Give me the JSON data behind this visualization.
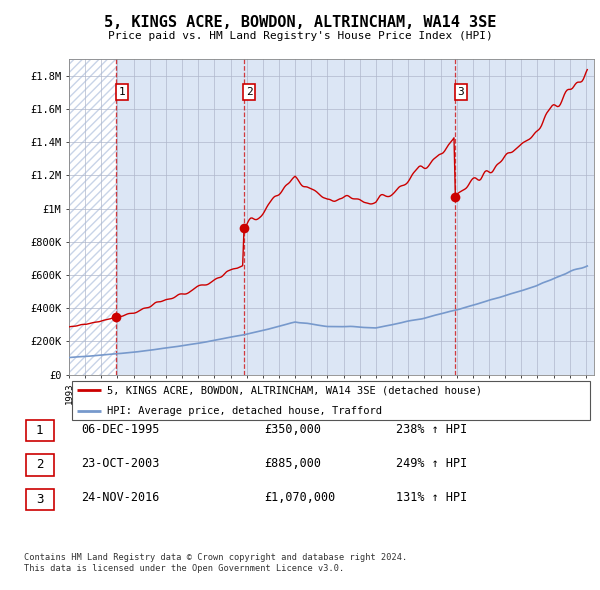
{
  "title": "5, KINGS ACRE, BOWDON, ALTRINCHAM, WA14 3SE",
  "subtitle": "Price paid vs. HM Land Registry's House Price Index (HPI)",
  "ylim": [
    0,
    1900000
  ],
  "yticks": [
    0,
    200000,
    400000,
    600000,
    800000,
    1000000,
    1200000,
    1400000,
    1600000,
    1800000
  ],
  "ytick_labels": [
    "£0",
    "£200K",
    "£400K",
    "£600K",
    "£800K",
    "£1M",
    "£1.2M",
    "£1.4M",
    "£1.6M",
    "£1.8M"
  ],
  "xlim_start": 1993.0,
  "xlim_end": 2025.5,
  "hpi_color": "#7799cc",
  "price_color": "#cc0000",
  "sale1_date": 1995.92,
  "sale1_price": 350000,
  "sale2_date": 2003.81,
  "sale2_price": 885000,
  "sale3_date": 2016.9,
  "sale3_price": 1070000,
  "legend_label_price": "5, KINGS ACRE, BOWDON, ALTRINCHAM, WA14 3SE (detached house)",
  "legend_label_hpi": "HPI: Average price, detached house, Trafford",
  "table_rows": [
    {
      "num": 1,
      "date": "06-DEC-1995",
      "price": "£350,000",
      "pct": "238% ↑ HPI"
    },
    {
      "num": 2,
      "date": "23-OCT-2003",
      "price": "£885,000",
      "pct": "249% ↑ HPI"
    },
    {
      "num": 3,
      "date": "24-NOV-2016",
      "price": "£1,070,000",
      "pct": "131% ↑ HPI"
    }
  ],
  "footer": "Contains HM Land Registry data © Crown copyright and database right 2024.\nThis data is licensed under the Open Government Licence v3.0.",
  "plot_bg": "#dce6f5",
  "hatch_color": "#c8d4e8"
}
